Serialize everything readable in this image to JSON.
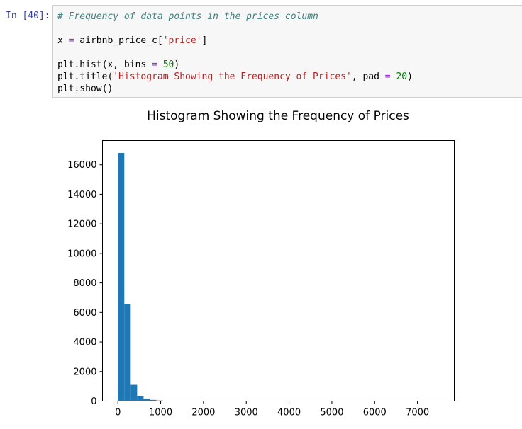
{
  "cell": {
    "prompt": "In [40]:",
    "code": {
      "line1": "# Frequency of data points in the prices column",
      "line2_a": "x ",
      "line2_op": "=",
      "line2_b": " airbnb_price_c[",
      "line2_str": "'price'",
      "line2_c": "]",
      "line3_a": "plt.hist(x, bins ",
      "line3_op": "=",
      "line3_sp": " ",
      "line3_num": "50",
      "line3_c": ")",
      "line4_a": "plt.title(",
      "line4_str": "'Histogram Showing the Frequency of Prices'",
      "line4_b": ", pad ",
      "line4_op": "=",
      "line4_sp": " ",
      "line4_num": "20",
      "line4_c": ")",
      "line5": "plt.show()"
    }
  },
  "colors": {
    "bar": "#1f77b4",
    "prompt": "#303f9f"
  },
  "chart_data": {
    "type": "bar",
    "title": "Histogram Showing the Frequency of Prices",
    "xlabel": "",
    "ylabel": "",
    "xlim": [
      -360,
      7860
    ],
    "ylim": [
      0,
      17640
    ],
    "bin_width": 150,
    "bins": [
      {
        "x0": 0,
        "value": 16800
      },
      {
        "x0": 150,
        "value": 6580
      },
      {
        "x0": 300,
        "value": 1100
      },
      {
        "x0": 450,
        "value": 330
      },
      {
        "x0": 600,
        "value": 170
      },
      {
        "x0": 750,
        "value": 80
      },
      {
        "x0": 900,
        "value": 40
      },
      {
        "x0": 1050,
        "value": 15
      }
    ],
    "xticks": [
      0,
      1000,
      2000,
      3000,
      4000,
      5000,
      6000,
      7000
    ],
    "xtick_labels": [
      "0",
      "1000",
      "2000",
      "3000",
      "4000",
      "5000",
      "6000",
      "7000"
    ],
    "yticks": [
      0,
      2000,
      4000,
      6000,
      8000,
      10000,
      12000,
      14000,
      16000
    ],
    "ytick_labels": [
      "0",
      "2000",
      "4000",
      "6000",
      "8000",
      "10000",
      "12000",
      "14000",
      "16000"
    ]
  }
}
